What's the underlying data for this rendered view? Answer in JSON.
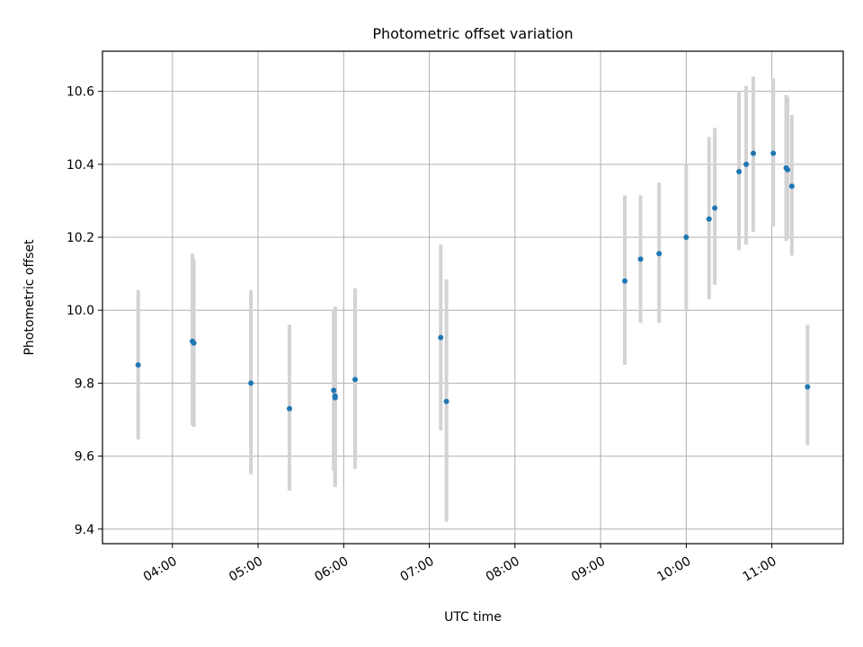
{
  "chart_data": {
    "type": "scatter",
    "title": "Photometric offset variation",
    "xlabel": "UTC time",
    "ylabel": "Photometric offset",
    "x_ticks": [
      "04:00",
      "05:00",
      "06:00",
      "07:00",
      "08:00",
      "09:00",
      "10:00",
      "11:00"
    ],
    "y_ticks": [
      "9.4",
      "9.6",
      "9.8",
      "10.0",
      "10.2",
      "10.4",
      "10.6"
    ],
    "xlim": [
      "03:11",
      "11:50"
    ],
    "ylim": [
      9.36,
      10.71
    ],
    "grid": true,
    "colors": {
      "points": "#1f77b4",
      "errorbars": "#d3d3d3",
      "grid": "#b0b0b0"
    },
    "points": [
      {
        "x": "03:36",
        "y": 9.85,
        "ylow": 9.645,
        "yhigh": 10.055
      },
      {
        "x": "04:14",
        "y": 9.915,
        "ylow": 9.685,
        "yhigh": 10.155
      },
      {
        "x": "04:15",
        "y": 9.91,
        "ylow": 9.68,
        "yhigh": 10.14
      },
      {
        "x": "04:55",
        "y": 9.8,
        "ylow": 9.55,
        "yhigh": 10.055
      },
      {
        "x": "05:22",
        "y": 9.73,
        "ylow": 9.505,
        "yhigh": 9.96
      },
      {
        "x": "05:53",
        "y": 9.78,
        "ylow": 9.56,
        "yhigh": 10.0
      },
      {
        "x": "05:54",
        "y": 9.765,
        "ylow": 9.515,
        "yhigh": 10.01
      },
      {
        "x": "05:54",
        "y": 9.76,
        "ylow": 9.52,
        "yhigh": 9.99
      },
      {
        "x": "06:08",
        "y": 9.81,
        "ylow": 9.565,
        "yhigh": 10.06
      },
      {
        "x": "07:08",
        "y": 9.925,
        "ylow": 9.67,
        "yhigh": 10.18
      },
      {
        "x": "07:12",
        "y": 9.75,
        "ylow": 9.42,
        "yhigh": 10.085
      },
      {
        "x": "09:17",
        "y": 10.08,
        "ylow": 9.85,
        "yhigh": 10.315
      },
      {
        "x": "09:28",
        "y": 10.14,
        "ylow": 9.965,
        "yhigh": 10.315
      },
      {
        "x": "09:41",
        "y": 10.155,
        "ylow": 9.965,
        "yhigh": 10.35
      },
      {
        "x": "10:00",
        "y": 10.2,
        "ylow": 10.0,
        "yhigh": 10.4
      },
      {
        "x": "10:16",
        "y": 10.25,
        "ylow": 10.03,
        "yhigh": 10.475
      },
      {
        "x": "10:20",
        "y": 10.28,
        "ylow": 10.07,
        "yhigh": 10.5
      },
      {
        "x": "10:37",
        "y": 10.38,
        "ylow": 10.165,
        "yhigh": 10.6
      },
      {
        "x": "10:42",
        "y": 10.4,
        "ylow": 10.18,
        "yhigh": 10.615
      },
      {
        "x": "10:47",
        "y": 10.43,
        "ylow": 10.215,
        "yhigh": 10.64
      },
      {
        "x": "11:01",
        "y": 10.43,
        "ylow": 10.23,
        "yhigh": 10.635
      },
      {
        "x": "11:10",
        "y": 10.39,
        "ylow": 10.19,
        "yhigh": 10.59
      },
      {
        "x": "11:11",
        "y": 10.385,
        "ylow": 10.195,
        "yhigh": 10.585
      },
      {
        "x": "11:14",
        "y": 10.34,
        "ylow": 10.15,
        "yhigh": 10.535
      },
      {
        "x": "11:25",
        "y": 9.79,
        "ylow": 9.63,
        "yhigh": 9.96
      }
    ]
  }
}
